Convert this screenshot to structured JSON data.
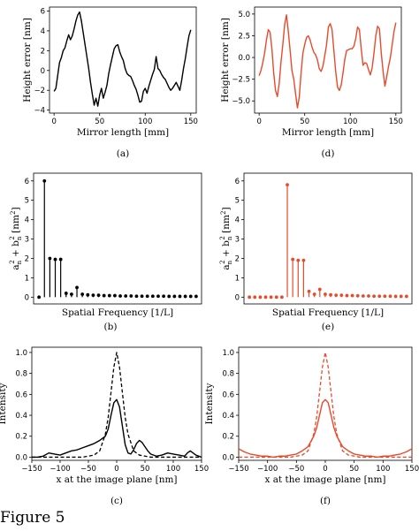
{
  "figure_caption": "Figure 5",
  "colors": {
    "black": "#000000",
    "red": "#e84a2b"
  },
  "chart_data": [
    {
      "id": "a",
      "panel_label": "(a)",
      "type": "line",
      "color": "#000000",
      "xlabel": "Mirror length [mm]",
      "ylabel": "Height error [nm]",
      "xlim": [
        -5,
        156
      ],
      "ylim": [
        -4.3,
        6.4
      ],
      "xticks": [
        0,
        50,
        100,
        150
      ],
      "yticks": [
        -4,
        -2,
        0,
        2,
        4,
        6
      ],
      "series": [
        {
          "x": [
            0,
            2,
            4,
            6,
            8,
            10,
            12,
            14,
            16,
            18,
            20,
            22,
            24,
            26,
            28,
            30,
            32,
            34,
            36,
            38,
            40,
            42,
            44,
            46,
            48,
            50,
            52,
            54,
            56,
            58,
            60,
            62,
            64,
            66,
            68,
            70,
            72,
            74,
            76,
            78,
            80,
            82,
            84,
            86,
            88,
            90,
            92,
            94,
            96,
            98,
            100,
            102,
            104,
            106,
            108,
            110,
            112,
            114,
            116,
            118,
            120,
            122,
            124,
            126,
            128,
            130,
            132,
            134,
            136,
            138,
            140,
            142,
            144,
            146,
            148,
            150
          ],
          "y": [
            -2.1,
            -1.8,
            -0.5,
            0.8,
            1.3,
            2.0,
            2.3,
            3.0,
            3.6,
            3.1,
            3.5,
            4.2,
            5.0,
            5.6,
            5.9,
            5.0,
            3.8,
            2.6,
            1.4,
            0.2,
            -1.2,
            -2.4,
            -3.5,
            -2.8,
            -3.6,
            -2.5,
            -1.8,
            -2.8,
            -2.2,
            -1.5,
            -0.3,
            0.6,
            1.4,
            2.2,
            2.5,
            2.6,
            1.9,
            1.4,
            1.0,
            0.2,
            -0.3,
            -0.5,
            -0.6,
            -1.0,
            -1.5,
            -1.9,
            -2.5,
            -3.2,
            -3.1,
            -2.1,
            -1.8,
            -2.3,
            -1.6,
            -1.0,
            -0.4,
            0.1,
            1.4,
            0.2,
            0.0,
            -0.4,
            -0.7,
            -0.9,
            -1.3,
            -1.7,
            -2.0,
            -1.8,
            -1.5,
            -1.2,
            -1.6,
            -2.0,
            -1.0,
            0.2,
            1.2,
            2.4,
            3.5,
            4.1
          ]
        }
      ]
    },
    {
      "id": "d",
      "panel_label": "(d)",
      "type": "line",
      "color": "#e84a2b",
      "xlabel": "Mirror length [mm]",
      "ylabel": "Height error [nm]",
      "xlim": [
        -5,
        156
      ],
      "ylim": [
        -6.4,
        5.8
      ],
      "xticks": [
        0,
        50,
        100,
        150
      ],
      "yticks": [
        -5.0,
        -2.5,
        0.0,
        2.5,
        5.0
      ],
      "series": [
        {
          "x": [
            0,
            2,
            4,
            6,
            8,
            10,
            12,
            14,
            16,
            18,
            20,
            22,
            24,
            26,
            28,
            30,
            32,
            34,
            36,
            38,
            40,
            42,
            44,
            46,
            48,
            50,
            52,
            54,
            56,
            58,
            60,
            62,
            64,
            66,
            68,
            70,
            72,
            74,
            76,
            78,
            80,
            82,
            84,
            86,
            88,
            90,
            92,
            94,
            96,
            98,
            100,
            102,
            104,
            106,
            108,
            110,
            112,
            114,
            116,
            118,
            120,
            122,
            124,
            126,
            128,
            130,
            132,
            134,
            136,
            138,
            140,
            142,
            144,
            146,
            148,
            150
          ],
          "y": [
            -2.1,
            -1.5,
            -0.6,
            0.5,
            2.0,
            3.2,
            2.9,
            1.0,
            -1.8,
            -3.8,
            -4.5,
            -3.0,
            -0.5,
            1.5,
            3.8,
            4.9,
            3.0,
            0.8,
            -1.5,
            -2.5,
            -4.2,
            -5.8,
            -4.6,
            -1.8,
            0.5,
            1.5,
            2.3,
            2.5,
            2.0,
            1.2,
            0.6,
            0.3,
            -0.3,
            -1.3,
            -1.6,
            -1.0,
            0.2,
            1.5,
            3.5,
            3.9,
            3.2,
            0.8,
            -1.6,
            -3.4,
            -3.8,
            -3.2,
            -1.8,
            -0.2,
            0.8,
            0.9,
            1.0,
            1.0,
            1.3,
            2.2,
            3.5,
            3.2,
            1.0,
            -0.9,
            -0.6,
            -0.7,
            -1.4,
            -2.0,
            -1.2,
            0.5,
            2.5,
            3.6,
            3.3,
            0.5,
            -1.6,
            -3.3,
            -2.2,
            -1.0,
            0.0,
            1.5,
            3.0,
            4.0
          ]
        }
      ]
    },
    {
      "id": "b",
      "panel_label": "(b)",
      "type": "stem",
      "color": "#000000",
      "xlabel": "Spatial Frequency [1/L]",
      "ylabel": "a_n^2 + b_n^2 [nm^2]",
      "xlim": [
        -1,
        30
      ],
      "ylim": [
        -0.35,
        6.4
      ],
      "xticks": [],
      "yticks": [
        0,
        1,
        2,
        3,
        4,
        5,
        6
      ],
      "values": [
        0.0,
        6.0,
        2.0,
        1.95,
        1.95,
        0.2,
        0.15,
        0.5,
        0.15,
        0.12,
        0.1,
        0.1,
        0.08,
        0.08,
        0.08,
        0.06,
        0.06,
        0.06,
        0.05,
        0.05,
        0.05,
        0.05,
        0.05,
        0.05,
        0.04,
        0.04,
        0.04,
        0.04,
        0.04,
        0.04
      ]
    },
    {
      "id": "e",
      "panel_label": "(e)",
      "type": "stem",
      "color": "#e84a2b",
      "xlabel": "Spatial Frequency [1/L]",
      "ylabel": "a_n^2 + b_n^2 [nm^2]",
      "xlim": [
        -1,
        30
      ],
      "ylim": [
        -0.35,
        6.4
      ],
      "xticks": [],
      "yticks": [
        0,
        1,
        2,
        3,
        4,
        5,
        6
      ],
      "values": [
        0.0,
        0.0,
        0.0,
        0.0,
        0.0,
        0.0,
        0.0,
        5.8,
        1.95,
        1.9,
        1.9,
        0.3,
        0.15,
        0.4,
        0.15,
        0.12,
        0.1,
        0.1,
        0.08,
        0.08,
        0.07,
        0.06,
        0.06,
        0.05,
        0.05,
        0.05,
        0.05,
        0.04,
        0.04,
        0.04
      ]
    },
    {
      "id": "c",
      "panel_label": "(c)",
      "type": "line",
      "color": "#000000",
      "xlabel": "x at the image plane [nm]",
      "ylabel": "Intensity",
      "xlim": [
        -150,
        150
      ],
      "ylim": [
        -0.03,
        1.05
      ],
      "xticks": [
        -150,
        -100,
        -50,
        0,
        50,
        100,
        150
      ],
      "yticks": [
        0.0,
        0.2,
        0.4,
        0.6,
        0.8,
        1.0
      ],
      "series": [
        {
          "style": "solid",
          "x": [
            -150,
            -140,
            -130,
            -120,
            -110,
            -100,
            -90,
            -80,
            -70,
            -60,
            -50,
            -40,
            -30,
            -20,
            -15,
            -10,
            -5,
            0,
            5,
            10,
            15,
            20,
            25,
            30,
            35,
            40,
            45,
            50,
            55,
            60,
            70,
            80,
            90,
            100,
            110,
            120,
            125,
            130,
            135,
            140,
            150
          ],
          "y": [
            0.0,
            0.0,
            0.01,
            0.04,
            0.03,
            0.02,
            0.04,
            0.06,
            0.07,
            0.09,
            0.11,
            0.13,
            0.16,
            0.2,
            0.27,
            0.4,
            0.52,
            0.55,
            0.48,
            0.3,
            0.12,
            0.04,
            0.03,
            0.07,
            0.13,
            0.16,
            0.14,
            0.1,
            0.06,
            0.03,
            0.01,
            0.02,
            0.04,
            0.03,
            0.02,
            0.01,
            0.04,
            0.06,
            0.04,
            0.02,
            0.0
          ]
        },
        {
          "style": "dashed",
          "x": [
            -150,
            -100,
            -60,
            -40,
            -30,
            -20,
            -15,
            -10,
            -5,
            0,
            5,
            10,
            15,
            20,
            30,
            40,
            60,
            100,
            150
          ],
          "y": [
            0.0,
            0.0,
            0.0,
            0.02,
            0.06,
            0.22,
            0.38,
            0.62,
            0.86,
            1.0,
            0.86,
            0.62,
            0.38,
            0.22,
            0.06,
            0.02,
            0.0,
            0.0,
            0.0
          ]
        }
      ]
    },
    {
      "id": "f",
      "panel_label": "(f)",
      "type": "line",
      "color": "#e84a2b",
      "xlabel": "x at the image plane [nm]",
      "ylabel": "Intensity",
      "xlim": [
        -150,
        150
      ],
      "ylim": [
        -0.03,
        1.05
      ],
      "xticks": [
        -150,
        -100,
        -50,
        0,
        50,
        100,
        150
      ],
      "yticks": [
        0.0,
        0.2,
        0.4,
        0.6,
        0.8,
        1.0
      ],
      "series": [
        {
          "style": "solid",
          "x": [
            -150,
            -140,
            -130,
            -120,
            -110,
            -100,
            -90,
            -80,
            -70,
            -60,
            -50,
            -40,
            -30,
            -20,
            -15,
            -10,
            -5,
            0,
            5,
            10,
            15,
            20,
            30,
            40,
            50,
            60,
            70,
            80,
            90,
            100,
            110,
            120,
            130,
            140,
            150
          ],
          "y": [
            0.08,
            0.05,
            0.03,
            0.02,
            0.01,
            0.01,
            0.0,
            0.01,
            0.01,
            0.02,
            0.03,
            0.06,
            0.1,
            0.2,
            0.28,
            0.4,
            0.52,
            0.55,
            0.52,
            0.4,
            0.28,
            0.2,
            0.1,
            0.06,
            0.03,
            0.02,
            0.01,
            0.01,
            0.0,
            0.01,
            0.01,
            0.02,
            0.03,
            0.05,
            0.08
          ]
        },
        {
          "style": "dashed",
          "x": [
            -150,
            -100,
            -60,
            -40,
            -30,
            -20,
            -15,
            -10,
            -5,
            0,
            5,
            10,
            15,
            20,
            30,
            40,
            60,
            100,
            150
          ],
          "y": [
            0.0,
            0.0,
            0.0,
            0.02,
            0.06,
            0.22,
            0.38,
            0.62,
            0.86,
            1.0,
            0.86,
            0.62,
            0.38,
            0.22,
            0.06,
            0.02,
            0.0,
            0.0,
            0.0
          ]
        }
      ]
    }
  ]
}
